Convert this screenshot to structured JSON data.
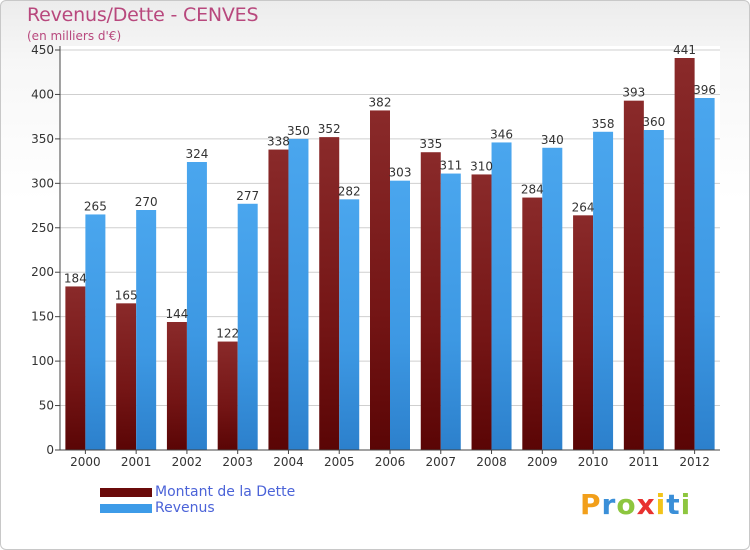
{
  "header": {
    "title": "Revenus/Dette - CENVES",
    "subtitle": "(en milliers d'€)"
  },
  "colors": {
    "dette": "#7a1c1c",
    "revenus": "#3d9be8",
    "title": "#b8487d",
    "legend_text": "#4b63d8"
  },
  "legend": {
    "items": [
      {
        "label": "Montant de la Dette",
        "color": "#6a0a0a"
      },
      {
        "label": "Revenus",
        "color": "#3d9be8"
      }
    ]
  },
  "brand": {
    "letters": [
      "P",
      "r",
      "o",
      "x",
      "i",
      "t",
      "i"
    ],
    "colors": [
      "#f29f1a",
      "#3a8fd8",
      "#8dc63f",
      "#e8312f",
      "#f2c41a",
      "#3a8fd8",
      "#8dc63f"
    ]
  },
  "chart_data": {
    "type": "bar",
    "title": "Revenus/Dette - CENVES",
    "subtitle": "(en milliers d'€)",
    "categories": [
      "2000",
      "2001",
      "2002",
      "2003",
      "2004",
      "2005",
      "2006",
      "2007",
      "2008",
      "2009",
      "2010",
      "2011",
      "2012"
    ],
    "series": [
      {
        "name": "Montant de la Dette",
        "values": [
          184,
          165,
          144,
          122,
          338,
          352,
          382,
          335,
          310,
          284,
          264,
          393,
          441
        ]
      },
      {
        "name": "Revenus",
        "values": [
          265,
          270,
          324,
          277,
          350,
          282,
          303,
          311,
          346,
          340,
          358,
          360,
          396
        ]
      }
    ],
    "yticks": [
      0,
      50,
      100,
      150,
      200,
      250,
      300,
      350,
      400,
      450
    ],
    "ylim": [
      0,
      450
    ],
    "grid": true,
    "legend_position": "bottom-left"
  }
}
